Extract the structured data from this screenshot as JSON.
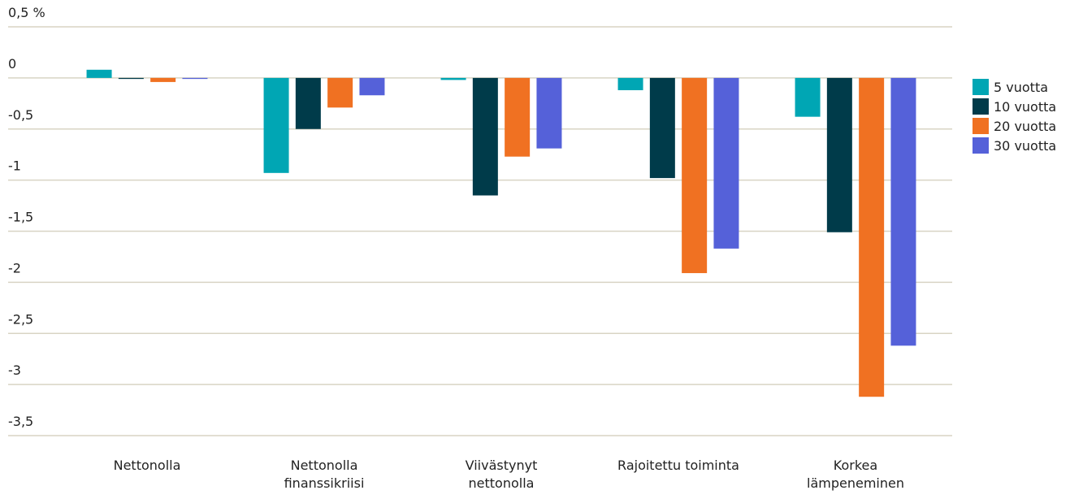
{
  "chart_data": {
    "type": "bar",
    "categories": [
      "Nettonolla",
      "Nettonolla finanssikriisi",
      "Viivästynyt nettonolla",
      "Rajoitettu toiminta",
      "Korkea lämpeneminen"
    ],
    "series": [
      {
        "name": "5 vuotta",
        "color": "#00a6b4",
        "values": [
          0.08,
          -0.93,
          -0.02,
          -0.12,
          -0.38
        ]
      },
      {
        "name": "10 vuotta",
        "color": "#003b4a",
        "values": [
          -0.01,
          -0.5,
          -1.15,
          -0.98,
          -1.51
        ]
      },
      {
        "name": "20 vuotta",
        "color": "#f07122",
        "values": [
          -0.04,
          -0.29,
          -0.77,
          -1.91,
          -3.12
        ]
      },
      {
        "name": "30 vuotta",
        "color": "#5561d9",
        "values": [
          -0.01,
          -0.17,
          -0.69,
          -1.67,
          -2.62
        ]
      }
    ],
    "ylim": [
      -3.5,
      0.5
    ],
    "yticks": [
      {
        "value": 0.5,
        "label": "0,5 %"
      },
      0,
      {
        "value": -0.5,
        "label": "-0,5"
      },
      -1,
      {
        "value": -1.5,
        "label": "-1,5"
      },
      -2,
      {
        "value": -2.5,
        "label": "-2,5"
      },
      -3,
      {
        "value": -3.5,
        "label": "-3,5"
      }
    ],
    "grid": true,
    "legend": "right"
  }
}
